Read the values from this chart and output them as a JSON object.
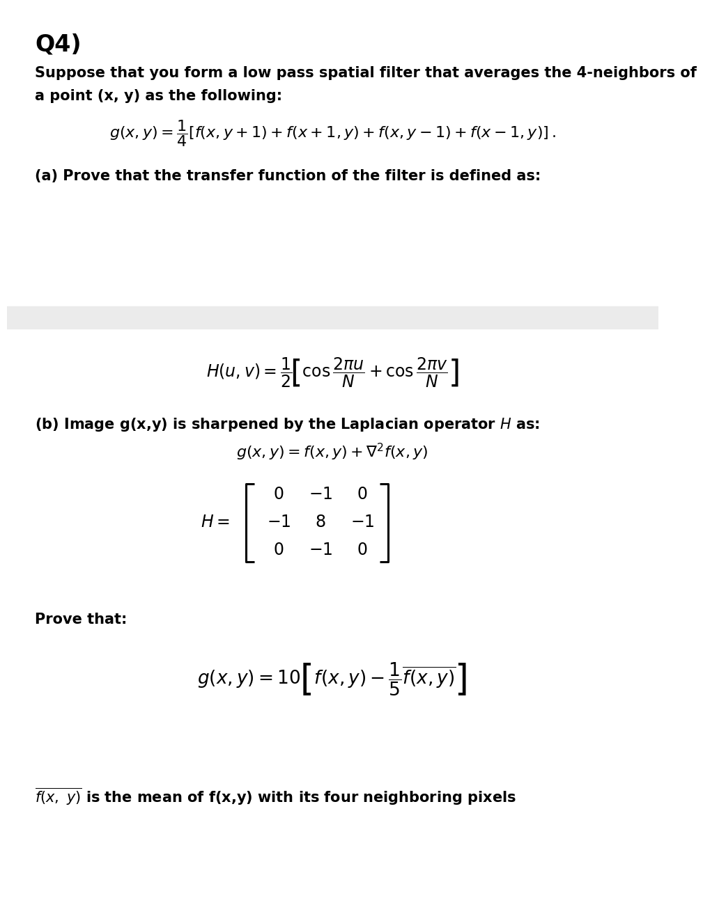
{
  "bg_color": "#ffffff",
  "gray_band_color": "#ebebeb",
  "title": "Q4)",
  "line1": "Suppose that you form a low pass spatial filter that averages the 4-neighbors of",
  "line2": "a point (x, y) as the following:",
  "part_a": "(a) Prove that the transfer function of the filter is defined as:",
  "part_b_line1": "(b) Image g(x,y) is sharpened by the Laplacian operator $H$ as:",
  "prove_that": "Prove that:",
  "footnote_end": " is the mean of f(x,y) with its four neighboring pixels",
  "font_size_title": 22,
  "font_size_body": 15,
  "font_size_formula": 16,
  "font_size_matrix": 17
}
